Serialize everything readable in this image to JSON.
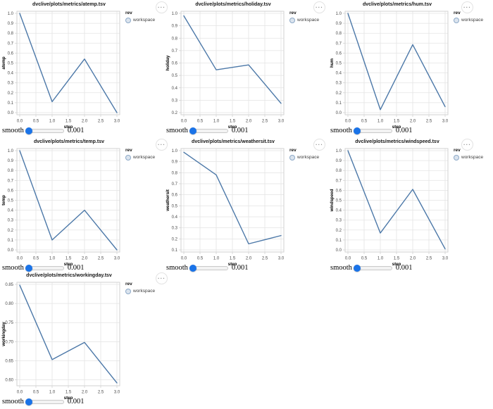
{
  "window": {
    "background": "#ffffff"
  },
  "shared": {
    "menu_button_label": "···"
  },
  "colors": {
    "line": "#4c78a8",
    "legend_symbol_fill": "rgba(76,120,168,0.2)",
    "legend_symbol_stroke": "rgba(76,120,168,0.55)",
    "grid": "#e3e3e3",
    "axis_border": "#d2d2d2",
    "tick": "#cfcfcf",
    "tick_label": "#4a4a4a",
    "axis_title": "#000000",
    "slider_thumb": "#1a73e8"
  },
  "chart_data": [
    {
      "type": "line",
      "title": "dvclive/plots/metrics/atemp.tsv",
      "xlabel": "step",
      "ylabel": "atemp",
      "x": [
        0,
        1,
        2,
        3
      ],
      "values": [
        1.0,
        0.11,
        0.54,
        0.0
      ],
      "xlim": [
        0,
        3
      ],
      "ylim": [
        0,
        1
      ],
      "grid": true,
      "xticks": [
        0,
        0.5,
        1,
        1.5,
        2,
        2.5,
        3
      ],
      "xtick_labels": [
        "0.0",
        "0.5",
        "1.0",
        "1.5",
        "2.0",
        "2.5",
        "3.0"
      ],
      "yticks": [
        0,
        0.1,
        0.2,
        0.3,
        0.4,
        0.5,
        0.6,
        0.7,
        0.8,
        0.9,
        1.0
      ],
      "ytick_labels": [
        "0.0",
        "0.1",
        "0.2",
        "0.3",
        "0.4",
        "0.5",
        "0.6",
        "0.7",
        "0.8",
        "0.9",
        "1.0"
      ],
      "legend": {
        "title": "rev",
        "items": [
          "workspace"
        ],
        "position": "top-right"
      },
      "smooth": {
        "label": "smooth",
        "value": "0.001"
      }
    },
    {
      "type": "line",
      "title": "dvclive/plots/metrics/holiday.tsv",
      "xlabel": "step",
      "ylabel": "holiday",
      "x": [
        0,
        1,
        2,
        3
      ],
      "values": [
        0.98,
        0.545,
        0.585,
        0.275
      ],
      "xlim": [
        0,
        3
      ],
      "ylim": [
        0.2,
        1.0
      ],
      "grid": true,
      "xticks": [
        0,
        0.5,
        1,
        1.5,
        2,
        2.5,
        3
      ],
      "xtick_labels": [
        "0.0",
        "0.5",
        "1.0",
        "1.5",
        "2.0",
        "2.5",
        "3.0"
      ],
      "yticks": [
        0.2,
        0.3,
        0.4,
        0.5,
        0.6,
        0.7,
        0.8,
        0.9,
        1.0
      ],
      "ytick_labels": [
        "0.2",
        "0.3",
        "0.4",
        "0.5",
        "0.6",
        "0.7",
        "0.8",
        "0.9",
        "1.0"
      ],
      "legend": {
        "title": "rev",
        "items": [
          "workspace"
        ],
        "position": "top-right"
      },
      "smooth": {
        "label": "smooth",
        "value": "0.001"
      }
    },
    {
      "type": "line",
      "title": "dvclive/plots/metrics/hum.tsv",
      "xlabel": "step",
      "ylabel": "hum",
      "x": [
        0,
        1,
        2,
        3
      ],
      "values": [
        1.0,
        0.03,
        0.685,
        0.06
      ],
      "xlim": [
        0,
        3
      ],
      "ylim": [
        0,
        1
      ],
      "grid": true,
      "xticks": [
        0,
        0.5,
        1,
        1.5,
        2,
        2.5,
        3
      ],
      "xtick_labels": [
        "0.0",
        "0.5",
        "1.0",
        "1.5",
        "2.0",
        "2.5",
        "3.0"
      ],
      "yticks": [
        0,
        0.1,
        0.2,
        0.3,
        0.4,
        0.5,
        0.6,
        0.7,
        0.8,
        0.9,
        1.0
      ],
      "ytick_labels": [
        "0.0",
        "0.1",
        "0.2",
        "0.3",
        "0.4",
        "0.5",
        "0.6",
        "0.7",
        "0.8",
        "0.9",
        "1.0"
      ],
      "legend": {
        "title": "rev",
        "items": [
          "workspace"
        ],
        "position": "top-right"
      },
      "smooth": {
        "label": "smooth",
        "value": "0.001"
      }
    },
    {
      "type": "line",
      "title": "dvclive/plots/metrics/temp.tsv",
      "xlabel": "step",
      "ylabel": "temp",
      "x": [
        0,
        1,
        2,
        3
      ],
      "values": [
        1.0,
        0.1,
        0.4,
        0.0
      ],
      "xlim": [
        0,
        3
      ],
      "ylim": [
        0,
        1
      ],
      "grid": true,
      "xticks": [
        0,
        0.5,
        1,
        1.5,
        2,
        2.5,
        3
      ],
      "xtick_labels": [
        "0.0",
        "0.5",
        "1.0",
        "1.5",
        "2.0",
        "2.5",
        "3.0"
      ],
      "yticks": [
        0,
        0.1,
        0.2,
        0.3,
        0.4,
        0.5,
        0.6,
        0.7,
        0.8,
        0.9,
        1.0
      ],
      "ytick_labels": [
        "0.0",
        "0.1",
        "0.2",
        "0.3",
        "0.4",
        "0.5",
        "0.6",
        "0.7",
        "0.8",
        "0.9",
        "1.0"
      ],
      "legend": {
        "title": "rev",
        "items": [
          "workspace"
        ],
        "position": "top-right"
      },
      "smooth": {
        "label": "smooth",
        "value": "0.001"
      }
    },
    {
      "type": "line",
      "title": "dvclive/plots/metrics/weathersit.tsv",
      "xlabel": "step",
      "ylabel": "weathersit",
      "x": [
        0,
        1,
        2,
        3
      ],
      "values": [
        0.985,
        0.78,
        0.155,
        0.23
      ],
      "xlim": [
        0,
        3
      ],
      "ylim": [
        0.1,
        1.0
      ],
      "grid": true,
      "xticks": [
        0,
        0.5,
        1,
        1.5,
        2,
        2.5,
        3
      ],
      "xtick_labels": [
        "0.0",
        "0.5",
        "1.0",
        "1.5",
        "2.0",
        "2.5",
        "3.0"
      ],
      "yticks": [
        0.1,
        0.2,
        0.3,
        0.4,
        0.5,
        0.6,
        0.7,
        0.8,
        0.9,
        1.0
      ],
      "ytick_labels": [
        "0.1",
        "0.2",
        "0.3",
        "0.4",
        "0.5",
        "0.6",
        "0.7",
        "0.8",
        "0.9",
        "1.0"
      ],
      "legend": {
        "title": "rev",
        "items": [
          "workspace"
        ],
        "position": "top-right"
      },
      "smooth": {
        "label": "smooth",
        "value": "0.001"
      }
    },
    {
      "type": "line",
      "title": "dvclive/plots/metrics/windspeed.tsv",
      "xlabel": "step",
      "ylabel": "windspeed",
      "x": [
        0,
        1,
        2,
        3
      ],
      "values": [
        1.0,
        0.17,
        0.61,
        0.01
      ],
      "xlim": [
        0,
        3
      ],
      "ylim": [
        0,
        1
      ],
      "grid": true,
      "xticks": [
        0,
        0.5,
        1,
        1.5,
        2,
        2.5,
        3
      ],
      "xtick_labels": [
        "0.0",
        "0.5",
        "1.0",
        "1.5",
        "2.0",
        "2.5",
        "3.0"
      ],
      "yticks": [
        0,
        0.1,
        0.2,
        0.3,
        0.4,
        0.5,
        0.6,
        0.7,
        0.8,
        0.9,
        1.0
      ],
      "ytick_labels": [
        "0.0",
        "0.1",
        "0.2",
        "0.3",
        "0.4",
        "0.5",
        "0.6",
        "0.7",
        "0.8",
        "0.9",
        "1.0"
      ],
      "legend": {
        "title": "rev",
        "items": [
          "workspace"
        ],
        "position": "top-right"
      },
      "smooth": {
        "label": "smooth",
        "value": "0.001"
      }
    },
    {
      "type": "line",
      "title": "dvclive/plots/metrics/workingday.tsv",
      "xlabel": "step",
      "ylabel": "workingday",
      "x": [
        0,
        1,
        2,
        3
      ],
      "values": [
        0.848,
        0.653,
        0.698,
        0.592
      ],
      "xlim": [
        0,
        3
      ],
      "ylim": [
        0.59,
        0.85
      ],
      "grid": true,
      "xticks": [
        0,
        0.5,
        1,
        1.5,
        2,
        2.5,
        3
      ],
      "xtick_labels": [
        "0.0",
        "0.5",
        "1.0",
        "1.5",
        "2.0",
        "2.5",
        "3.0"
      ],
      "yticks": [
        0.6,
        0.65,
        0.7,
        0.75,
        0.8,
        0.85
      ],
      "ytick_labels": [
        "0.60",
        "0.65",
        "0.70",
        "0.75",
        "0.80",
        "0.85"
      ],
      "legend": {
        "title": "rev",
        "items": [
          "workspace"
        ],
        "position": "top-right"
      },
      "smooth": {
        "label": "smooth",
        "value": "0.001"
      }
    }
  ]
}
